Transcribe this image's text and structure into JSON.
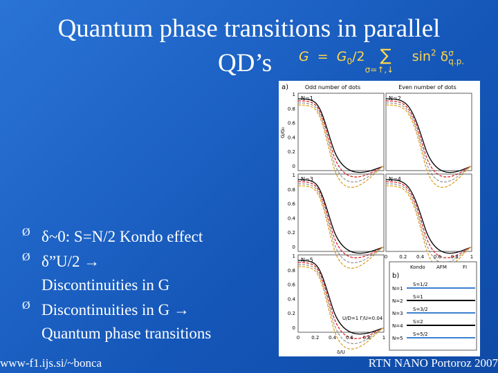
{
  "header": {
    "title_line1": "Quantum phase transitions in parallel",
    "title_line2": "QD’s",
    "formula": {
      "lhs": "G",
      "eq": "=",
      "g0": "G",
      "g0_sub": "0",
      "half": "/2",
      "sum": "∑",
      "sum_sub": "σ=↑,↓",
      "sin": "sin",
      "sin_sup": "2",
      "delta": "δ",
      "delta_sup": "σ",
      "delta_sub": "q.p."
    }
  },
  "bullets": [
    {
      "marker": "Ø",
      "lines": [
        "δ~0: S=N/2 Kondo effect"
      ]
    },
    {
      "marker": "Ø",
      "lines": [
        "δ”U/2  →",
        "Discontinuities in G"
      ]
    },
    {
      "marker": "Ø",
      "lines": [
        "Discontinuities in G  →",
        "Quantum phase transitions"
      ]
    }
  ],
  "figure": {
    "panel_a": "a)",
    "odd": "Odd number of dots",
    "even": "Even number of dots",
    "panels": [
      "N=1",
      "N=2",
      "N=3",
      "N=4",
      "N=5"
    ],
    "yticks": [
      "1",
      "0.8",
      "0.6",
      "0.4",
      "0.2",
      "0"
    ],
    "xticks": [
      "0",
      "0.2",
      "0.4",
      "0.6",
      "0.8",
      "1"
    ],
    "ylabel": "G/G₀",
    "xlabel": "δ/U",
    "note": "U/D=1 Γ/U=0.04",
    "panel_b": "b)",
    "table_header": [
      "Kondo",
      "AFM",
      "FI"
    ],
    "table_rows": [
      "N=1",
      "N=2",
      "N=3",
      "N=4",
      "N=5"
    ],
    "spins": [
      "S=1/2",
      "S=1",
      "S=3/2",
      "S=2",
      "S=5/2"
    ]
  },
  "footer": {
    "left": "www-f1.ijs.si/~bonca",
    "right": "RTN NANO Portoroz 2007"
  }
}
